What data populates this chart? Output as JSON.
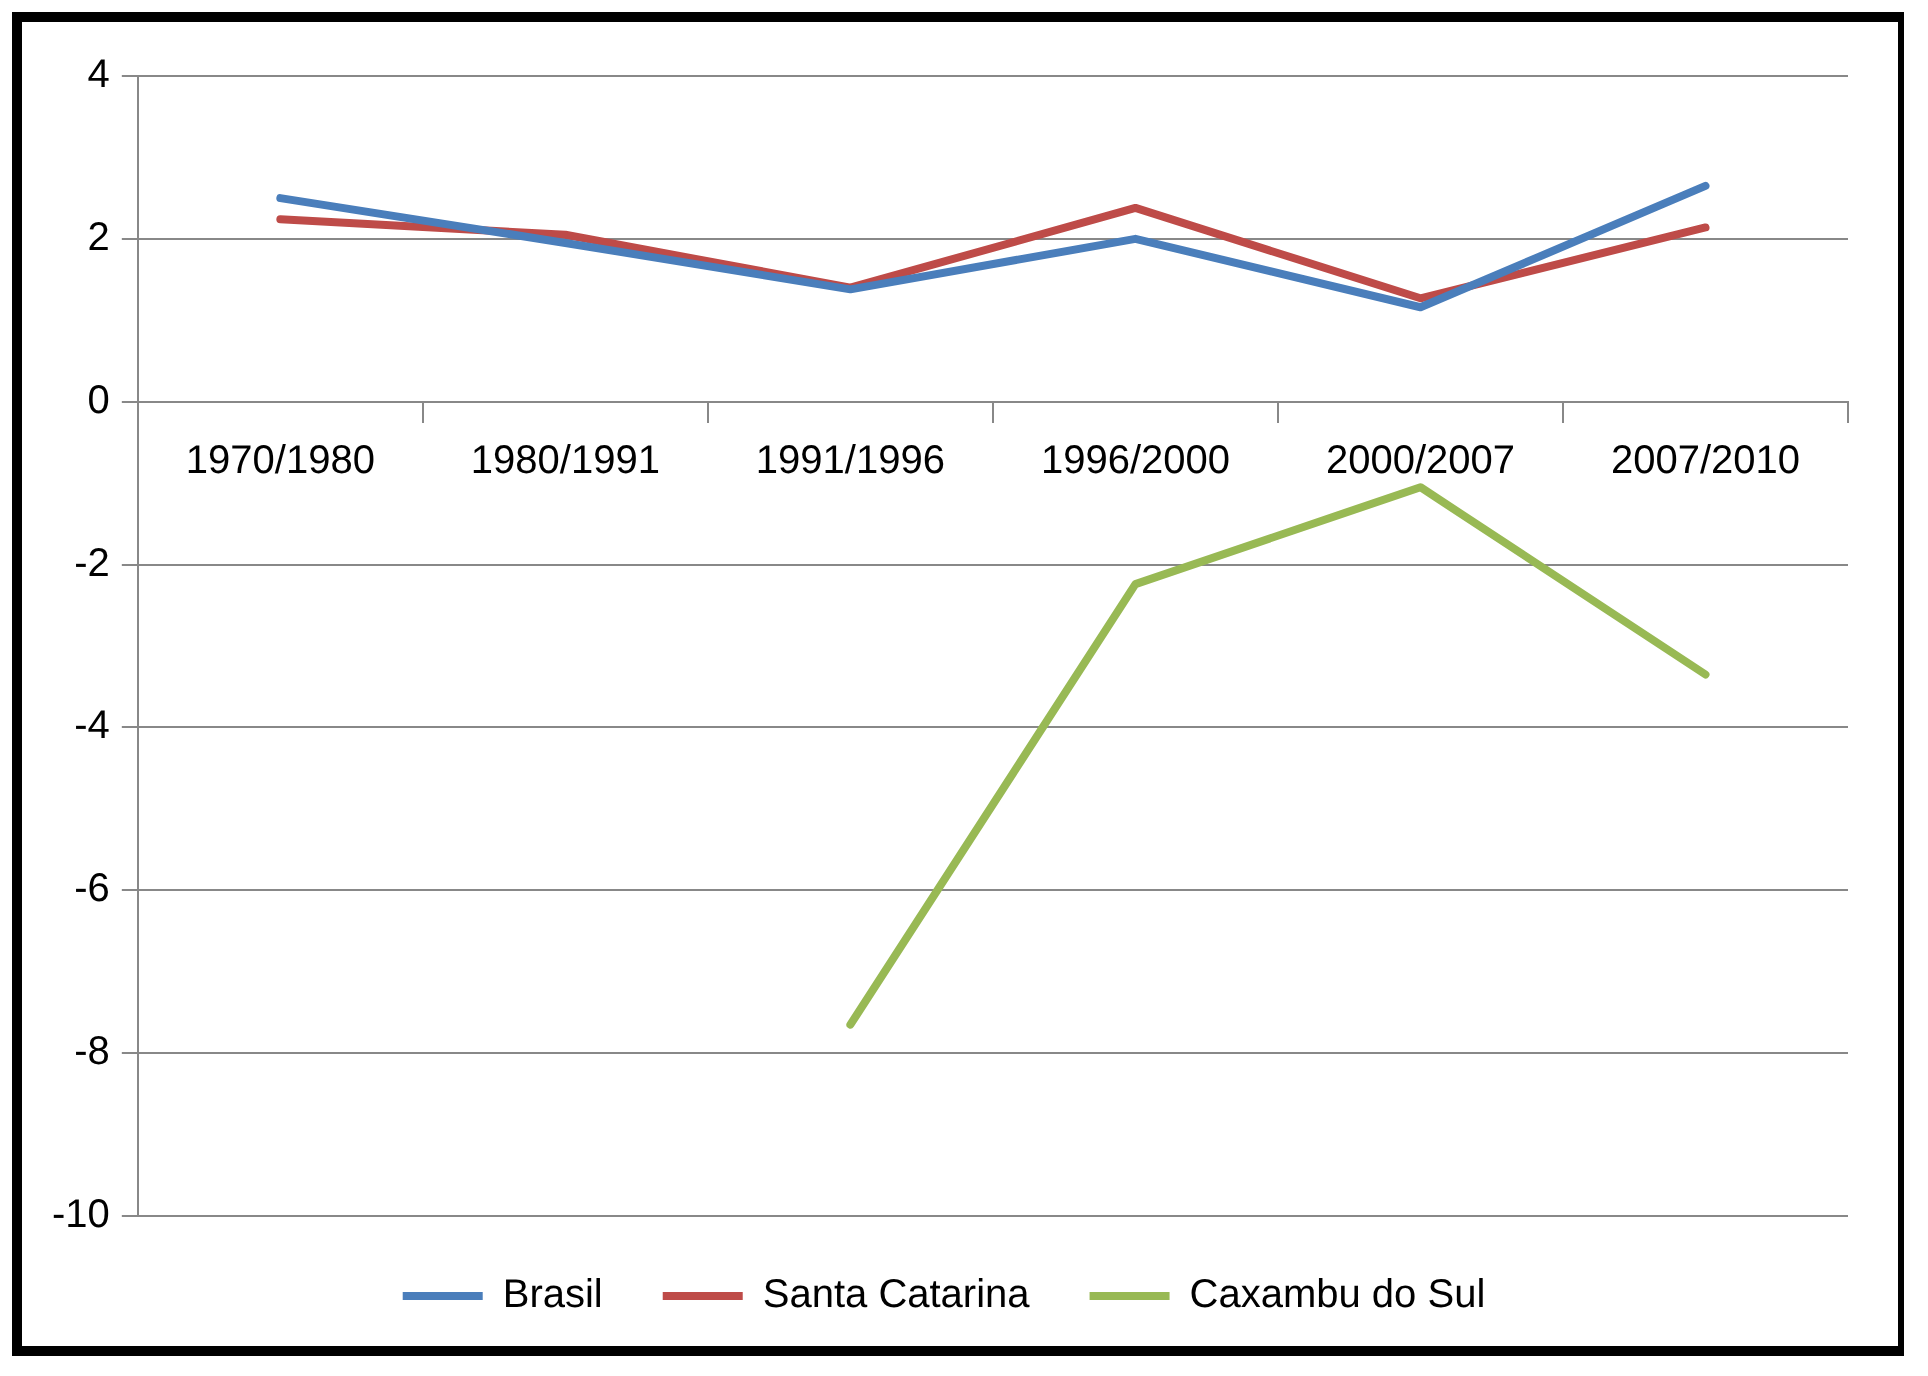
{
  "chart_data": {
    "type": "line",
    "categories": [
      "1970/1980",
      "1980/1991",
      "1991/1996",
      "1996/2000",
      "2000/2007",
      "2007/2010"
    ],
    "series": [
      {
        "name": "Brasil",
        "color": "#4a7ebb",
        "values": [
          2.5,
          1.95,
          1.38,
          2.0,
          1.16,
          2.65
        ]
      },
      {
        "name": "Santa Catarina",
        "color": "#be4b48",
        "values": [
          2.24,
          2.05,
          1.4,
          2.38,
          1.27,
          2.14
        ]
      },
      {
        "name": "Caxambu do Sul",
        "color": "#98b954",
        "values": [
          null,
          null,
          -7.65,
          -2.24,
          -1.05,
          -3.35
        ]
      }
    ],
    "ylim": [
      -10,
      4
    ],
    "yticks": [
      -10,
      -8,
      -6,
      -4,
      -2,
      0,
      2,
      4
    ],
    "grid": "y",
    "legend": "bottom",
    "marker": "none",
    "line_style": "solid"
  }
}
